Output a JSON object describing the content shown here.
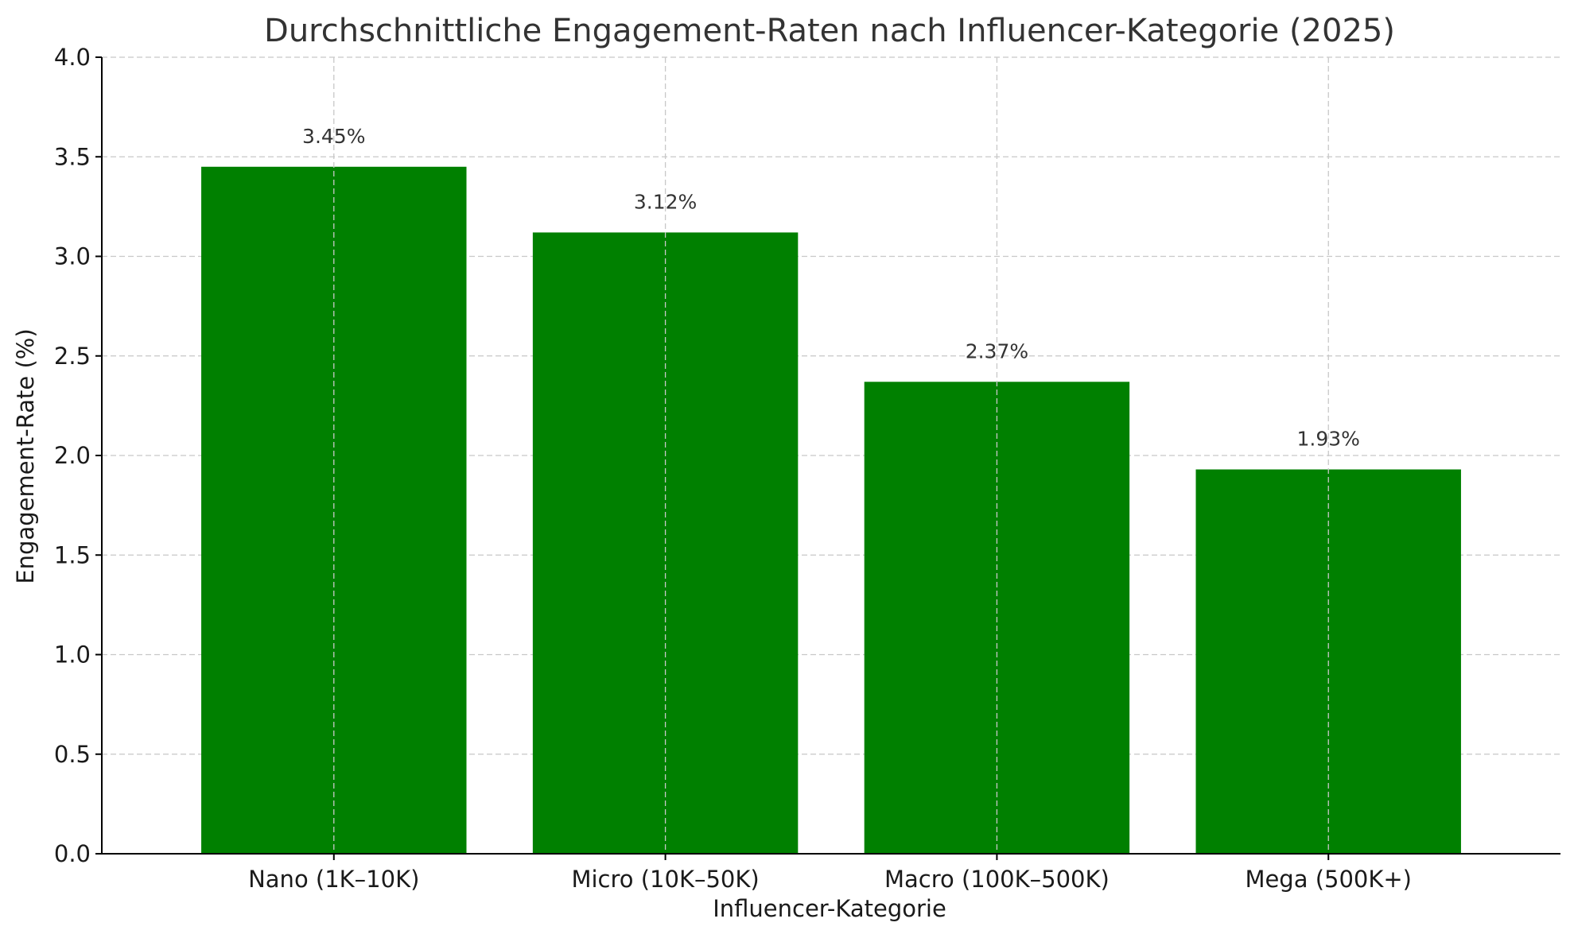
{
  "chart_data": {
    "type": "bar",
    "title": "Durchschnittliche Engagement-Raten nach Influencer-Kategorie (2025)",
    "xlabel": "Influencer-Kategorie",
    "ylabel": "Engagement-Rate (%)",
    "categories": [
      "Nano (1K–10K)",
      "Micro (10K–50K)",
      "Macro (100K–500K)",
      "Mega (500K+)"
    ],
    "values": [
      3.45,
      3.12,
      2.37,
      1.93
    ],
    "data_labels": [
      "3.45%",
      "3.12%",
      "2.37%",
      "1.93%"
    ],
    "ylim": [
      0,
      4.0
    ],
    "yticks": [
      0.0,
      0.5,
      1.0,
      1.5,
      2.0,
      2.5,
      3.0,
      3.5,
      4.0
    ],
    "ytick_labels": [
      "0.0",
      "0.5",
      "1.0",
      "1.5",
      "2.0",
      "2.5",
      "3.0",
      "3.5",
      "4.0"
    ],
    "grid": true,
    "bar_color": "#008000"
  }
}
